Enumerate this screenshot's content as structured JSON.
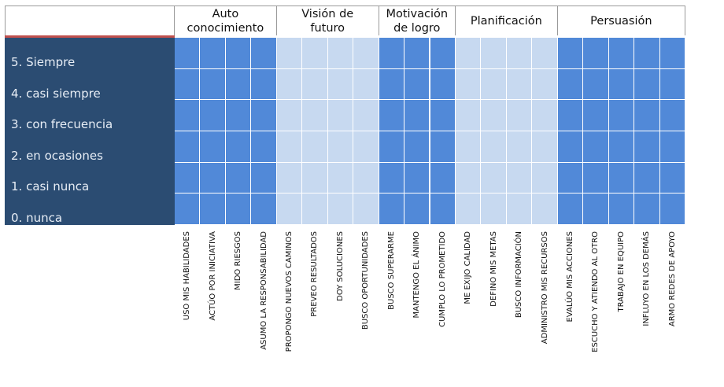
{
  "chart_data": {
    "type": "table",
    "columns": [
      {
        "category": "Auto conocimiento",
        "header_lines": [
          "Auto",
          "conocimiento"
        ],
        "items": [
          "USO MIS HABILIDADES",
          "ACTÚO POR INICIATIVA",
          "MIDO RIESGOS",
          "ASUMO LA RESPONSABILIDAD"
        ],
        "fill": "#5189d8"
      },
      {
        "category": "Visión de futuro",
        "header_lines": [
          "Visión de",
          "futuro"
        ],
        "items": [
          "PROPONGO NUEVOS CAMINOS",
          "PREVEO RESULTADOS",
          "DOY SOLUCIONES",
          "BUSCO OPORTUNIDADES"
        ],
        "fill": "#c7d9f0"
      },
      {
        "category": "Motivación de logro",
        "header_lines": [
          "Motivación",
          "de logro"
        ],
        "items": [
          "BUSCO SUPERARME",
          "MANTENGO EL ÁNIMO",
          "CUMPLO LO PROMETIDO"
        ],
        "fill": "#5189d8"
      },
      {
        "category": "Planificación",
        "header_lines": [
          "Planificación"
        ],
        "items": [
          "ME EXIJO CALIDAD",
          "DEFINO MIS METAS",
          "BUSCO INFORMACIÓN",
          "ADMINISTRO MIS RECURSOS"
        ],
        "fill": "#c7d9f0"
      },
      {
        "category": "Persuasión",
        "header_lines": [
          "Persuasión"
        ],
        "items": [
          "EVALÚO MIS ACCIONES",
          "ESCUCHO Y ATIENDO AL OTRO",
          "TRABAJO EN EQUIPO",
          "INFLUYO EN LOS DEMÁS",
          "ARMO REDES DE APOYO"
        ],
        "fill": "#5189d8"
      }
    ],
    "levels": [
      "5. Siempre",
      "4. casi siempre",
      "3. con frecuencia",
      "2. en ocasiones",
      "1. casi nunca",
      "0. nunca"
    ],
    "values": []
  },
  "colors": {
    "level_panel": "#2b4c72",
    "level_text": "#e8eef6",
    "accent_line": "#c0504d",
    "dark_block": "#5189d8",
    "light_block": "#c7d9f0",
    "gridline": "#ffffff",
    "header_border": "#9a9a9a"
  }
}
